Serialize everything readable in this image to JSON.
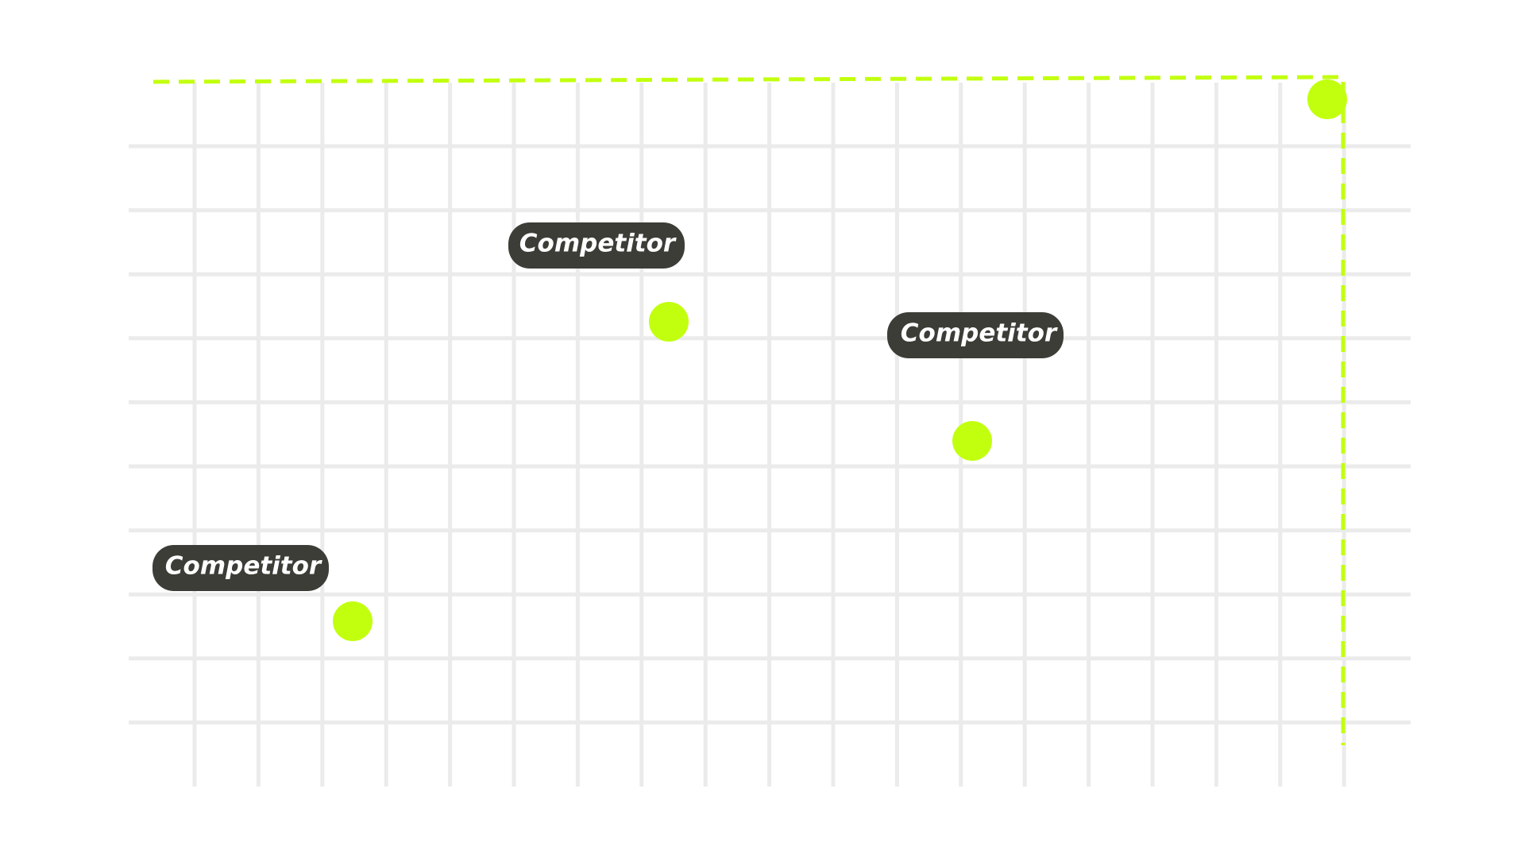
{
  "labels": [
    "Competitor",
    "Competitor",
    "Competitor"
  ]
}
